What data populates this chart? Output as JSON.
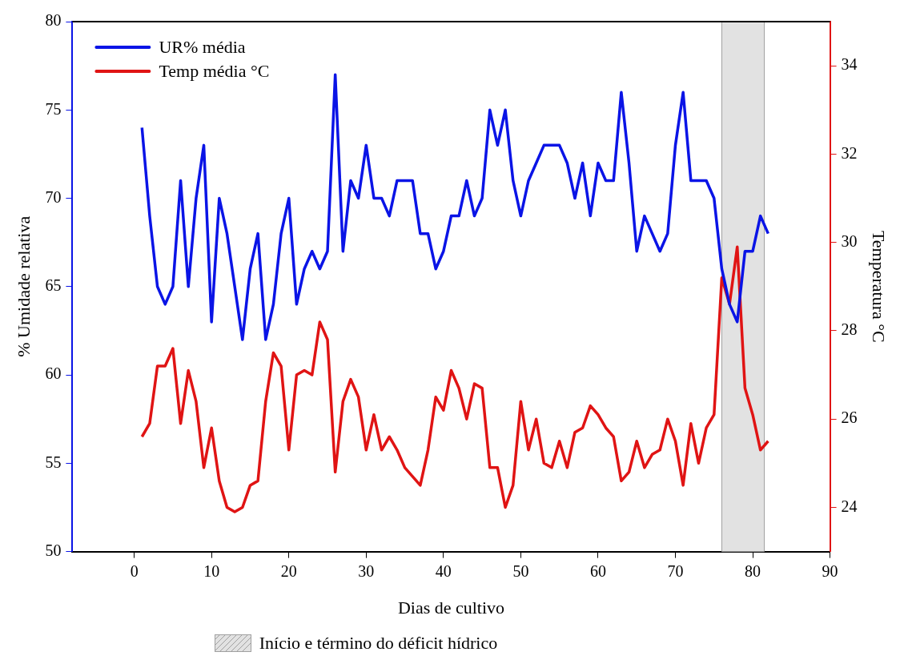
{
  "chart_data": {
    "type": "line",
    "xlabel": "Dias de cultivo",
    "ylabel": "% Umidade relativa",
    "y2label": "Temperatura °C",
    "x": [
      1,
      2,
      3,
      4,
      5,
      6,
      7,
      8,
      9,
      10,
      11,
      12,
      13,
      14,
      15,
      16,
      17,
      18,
      19,
      20,
      21,
      22,
      23,
      24,
      25,
      26,
      27,
      28,
      29,
      30,
      31,
      32,
      33,
      34,
      35,
      36,
      37,
      38,
      39,
      40,
      41,
      42,
      43,
      44,
      45,
      46,
      47,
      48,
      49,
      50,
      51,
      52,
      53,
      54,
      55,
      56,
      57,
      58,
      59,
      60,
      61,
      62,
      63,
      64,
      65,
      66,
      67,
      68,
      69,
      70,
      71,
      72,
      73,
      74,
      75,
      76,
      77,
      78,
      79,
      80,
      81,
      82
    ],
    "series": [
      {
        "name": "UR% média",
        "color": "#0a14e6",
        "values": [
          74,
          69,
          65,
          64,
          65,
          71,
          65,
          70,
          73,
          63,
          70,
          68,
          65,
          62,
          66,
          68,
          62,
          64,
          68,
          70,
          64,
          66,
          67,
          66,
          67,
          77,
          67,
          71,
          70,
          73,
          70,
          70,
          69,
          71,
          71,
          71,
          68,
          68,
          66,
          67,
          69,
          69,
          71,
          69,
          70,
          75,
          73,
          75,
          71,
          69,
          71,
          72,
          73,
          73,
          73,
          72,
          70,
          72,
          69,
          72,
          71,
          71,
          76,
          72,
          67,
          69,
          68,
          67,
          68,
          73,
          76,
          71,
          71,
          71,
          70,
          66,
          64,
          63,
          67,
          67,
          69,
          68
        ]
      },
      {
        "name": "Temp média °C",
        "color": "#e01414",
        "axis": "y2",
        "values": [
          25.6,
          25.9,
          27.2,
          27.2,
          27.6,
          25.9,
          27.1,
          26.4,
          24.9,
          25.8,
          24.6,
          24.0,
          23.9,
          24.0,
          24.5,
          24.6,
          26.4,
          27.5,
          27.2,
          25.3,
          27.0,
          27.1,
          27.0,
          28.2,
          27.8,
          24.8,
          26.4,
          26.9,
          26.5,
          25.3,
          26.1,
          25.3,
          25.6,
          25.3,
          24.9,
          24.7,
          24.5,
          25.3,
          26.5,
          26.2,
          27.1,
          26.7,
          26.0,
          26.8,
          26.7,
          24.9,
          24.9,
          24.0,
          24.5,
          26.4,
          25.3,
          26.0,
          25.0,
          24.9,
          25.5,
          24.9,
          25.7,
          25.8,
          26.3,
          26.1,
          25.8,
          25.6,
          24.6,
          24.8,
          25.5,
          24.9,
          25.2,
          25.3,
          26.0,
          25.5,
          24.5,
          25.9,
          25.0,
          25.8,
          26.1,
          29.2,
          28.6,
          29.9,
          26.7,
          26.1,
          25.3,
          25.5
        ]
      }
    ],
    "xlim": [
      -8,
      90
    ],
    "xticks": [
      0,
      10,
      20,
      30,
      40,
      50,
      60,
      70,
      80,
      90
    ],
    "ylim": [
      50,
      80
    ],
    "yticks": [
      50,
      55,
      60,
      65,
      70,
      75,
      80
    ],
    "y2lim": [
      23,
      35
    ],
    "y2ticks": [
      24,
      26,
      28,
      30,
      32,
      34
    ],
    "bands": [
      {
        "axis": "x",
        "from": 76,
        "to": 81.5,
        "color": "#a0a0a0"
      }
    ],
    "annotations": [
      "Início e término do déficit hídrico"
    ],
    "legend": "top left",
    "line_style": "solid",
    "marker": "none"
  }
}
